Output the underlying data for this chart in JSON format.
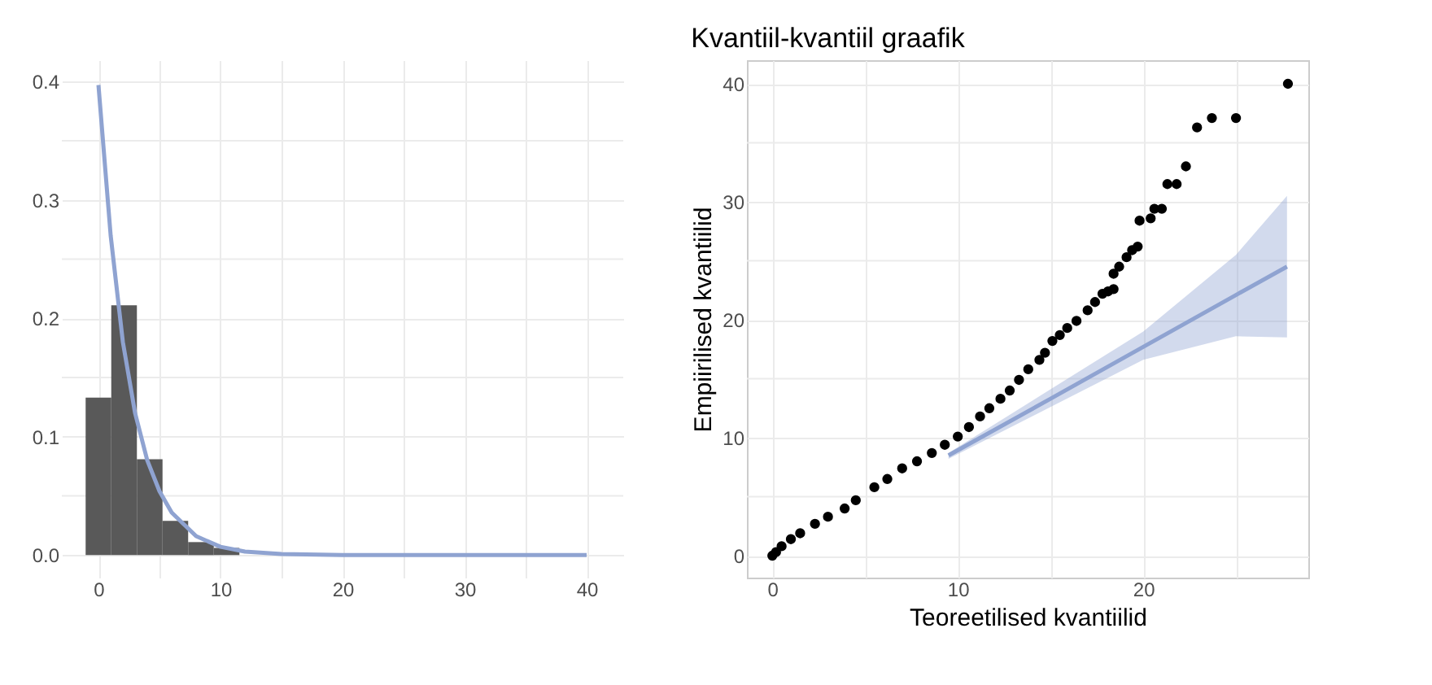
{
  "chart_data": [
    {
      "type": "histogram",
      "xlim": [
        -3,
        43
      ],
      "ylim": [
        -0.019,
        0.418
      ],
      "xticks": [
        0,
        {
          "value": 5,
          "label": null
        },
        10,
        {
          "value": 15,
          "label": null
        },
        20,
        {
          "value": 25,
          "label": null
        },
        30,
        {
          "value": 35,
          "label": null
        },
        40
      ],
      "yticks": [
        {
          "value": 0,
          "label": "0.0"
        },
        {
          "value": 0.05,
          "label": null
        },
        0.1,
        {
          "value": 0.15,
          "label": null
        },
        0.2,
        {
          "value": 0.25,
          "label": null
        },
        0.3,
        {
          "value": 0.35,
          "label": null
        },
        0.4
      ],
      "grid": true,
      "series": [
        {
          "color": "#595959",
          "bins": [
            -1.05,
            1.05,
            3.15,
            5.25,
            7.35,
            9.45,
            11.55,
            13.65
          ],
          "values": [
            0.133,
            0.211,
            0.081,
            0.029,
            0.011,
            0.006,
            null
          ]
        },
        {
          "type": "line",
          "color": "#8fa3d1",
          "x": [
            0,
            1,
            2,
            3,
            4,
            5,
            6,
            8,
            10,
            12,
            15,
            20,
            30,
            40
          ],
          "values": [
            0.397,
            0.27,
            0.18,
            0.12,
            0.08,
            0.054,
            0.036,
            0.016,
            0.007,
            0.003,
            0.001,
            0,
            0,
            0
          ]
        }
      ]
    },
    {
      "type": "scatter",
      "title": "Kvantiil-kvantiil graafik",
      "xlabel": "Teoreetilised kvantiilid",
      "ylabel": "Empiirilised kvantiilid",
      "xlim": [
        -1.37,
        28.9
      ],
      "ylim": [
        -1.86,
        42
      ],
      "xticks": [
        0,
        {
          "value": 5,
          "label": null
        },
        10,
        {
          "value": 15,
          "label": null
        },
        20,
        {
          "value": 25,
          "label": null
        }
      ],
      "yticks": [
        0,
        {
          "value": 5,
          "label": null
        },
        10,
        {
          "value": 15,
          "label": null
        },
        20,
        {
          "value": 25,
          "label": null
        },
        30,
        {
          "value": 35,
          "label": null
        },
        40
      ],
      "grid": true,
      "series": [
        {
          "type": "line",
          "color": "#8fa3d1",
          "x": [
            9.5,
            15,
            20,
            25,
            27.75
          ],
          "values": [
            8.5,
            13.3,
            17.7,
            22.1,
            24.5
          ],
          "lower": [
            8.2,
            12.6,
            16.6,
            18.6,
            18.5
          ],
          "upper": [
            8.7,
            14.1,
            19.0,
            25.5,
            30.5
          ]
        },
        {
          "color": "#000000",
          "marker": "circle",
          "x": [
            0,
            0.2,
            0.5,
            1.0,
            1.5,
            2.3,
            3,
            3.9,
            4.5,
            5.5,
            6.2,
            7,
            7.8,
            8.6,
            9.3,
            10,
            10.6,
            11.2,
            11.7,
            12.3,
            12.8,
            13.3,
            13.8,
            14.4,
            14.7,
            15.1,
            15.5,
            15.9,
            16.4,
            17,
            17.4,
            17.8,
            18.1,
            18.4,
            18.4,
            18.7,
            19.1,
            19.4,
            19.7,
            19.8,
            20.4,
            20.6,
            21,
            21.3,
            21.8,
            22.3,
            22.9,
            23.7,
            25,
            27.8
          ],
          "values": [
            0,
            0.3,
            0.8,
            1.4,
            1.9,
            2.7,
            3.3,
            4,
            4.7,
            5.8,
            6.5,
            7.4,
            8,
            8.7,
            9.4,
            10.1,
            10.9,
            11.8,
            12.5,
            13.3,
            14,
            14.9,
            15.8,
            16.6,
            17.2,
            18.2,
            18.7,
            19.3,
            19.9,
            20.8,
            21.5,
            22.2,
            22.4,
            22.6,
            23.9,
            24.5,
            25.3,
            25.9,
            26.2,
            28.4,
            28.6,
            29.4,
            29.4,
            31.5,
            31.5,
            33,
            36.3,
            37.1,
            37.1,
            40
          ]
        }
      ]
    }
  ]
}
